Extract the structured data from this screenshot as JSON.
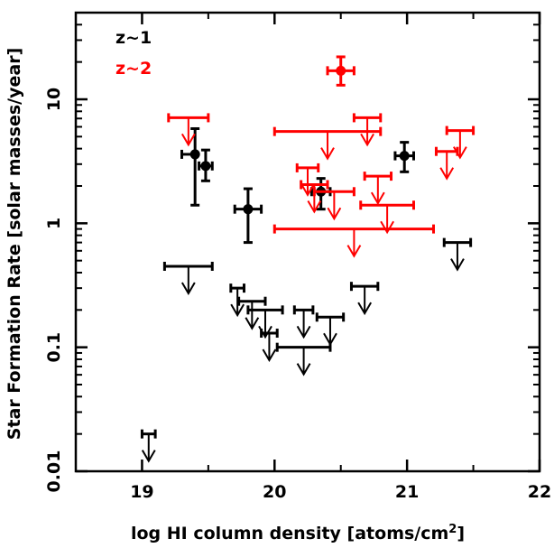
{
  "chart_data": {
    "type": "scatter",
    "xlabel": "log HI column density [atoms/cm",
    "xlabel_sup": "2",
    "xlabel_end": "]",
    "ylabel": "Star Formation Rate [solar masses/year]",
    "x_ticks": [
      "19",
      "20",
      "21",
      "22"
    ],
    "y_ticks": [
      "0.01",
      "0.1",
      "1",
      "10"
    ],
    "xlim": [
      18.5,
      22
    ],
    "ylim": [
      0.01,
      50
    ],
    "yscale": "log",
    "grid": false,
    "legend_position": "top-left",
    "colors": {
      "z1": "#000000",
      "z2": "#ff0000"
    },
    "series": [
      {
        "name": "z~1",
        "color": "#000000",
        "points": [
          {
            "x": 19.4,
            "y": 3.6,
            "xerr": [
              0.1,
              0.0
            ],
            "yerr": [
              1.4,
              5.8
            ]
          },
          {
            "x": 19.48,
            "y": 2.9,
            "xerr": [
              0.05,
              0.05
            ],
            "yerr": [
              2.2,
              3.9
            ]
          },
          {
            "x": 19.8,
            "y": 1.3,
            "xerr": [
              0.1,
              0.1
            ],
            "yerr": [
              0.7,
              1.9
            ]
          },
          {
            "x": 20.35,
            "y": 1.8,
            "xerr": [
              0.07,
              0.07
            ],
            "yerr": [
              1.3,
              2.3
            ]
          },
          {
            "x": 20.98,
            "y": 3.5,
            "xerr": [
              0.07,
              0.07
            ],
            "yerr": [
              2.6,
              4.5
            ]
          }
        ],
        "upper_limits": [
          {
            "x": 19.05,
            "y": 0.02,
            "xerr": [
              0.05,
              0.05
            ]
          },
          {
            "x": 19.35,
            "y": 0.45,
            "xerr": [
              0.18,
              0.18
            ]
          },
          {
            "x": 19.72,
            "y": 0.3,
            "xerr": [
              0.05,
              0.05
            ]
          },
          {
            "x": 19.83,
            "y": 0.235,
            "xerr": [
              0.1,
              0.1
            ]
          },
          {
            "x": 19.93,
            "y": 0.2,
            "xerr": [
              0.13,
              0.13
            ]
          },
          {
            "x": 19.96,
            "y": 0.13,
            "xerr": [
              0.06,
              0.06
            ]
          },
          {
            "x": 20.22,
            "y": 0.2,
            "xerr": [
              0.07,
              0.07
            ]
          },
          {
            "x": 20.22,
            "y": 0.1,
            "xerr": [
              0.2,
              0.2
            ]
          },
          {
            "x": 20.42,
            "y": 0.175,
            "xerr": [
              0.1,
              0.1
            ]
          },
          {
            "x": 20.68,
            "y": 0.31,
            "xerr": [
              0.1,
              0.1
            ]
          },
          {
            "x": 21.38,
            "y": 0.7,
            "xerr": [
              0.1,
              0.1
            ]
          }
        ]
      },
      {
        "name": "z~2",
        "color": "#ff0000",
        "points": [
          {
            "x": 20.5,
            "y": 17,
            "xerr": [
              0.1,
              0.1
            ],
            "yerr": [
              13,
              22
            ]
          }
        ],
        "upper_limits": [
          {
            "x": 19.35,
            "y": 7.1,
            "xerr": [
              0.15,
              0.15
            ]
          },
          {
            "x": 20.4,
            "y": 5.5,
            "xerr": [
              0.4,
              0.4
            ]
          },
          {
            "x": 20.7,
            "y": 7.1,
            "xerr": [
              0.1,
              0.1
            ]
          },
          {
            "x": 21.3,
            "y": 3.8,
            "xerr": [
              0.08,
              0.08
            ]
          },
          {
            "x": 21.4,
            "y": 5.6,
            "xerr": [
              0.1,
              0.1
            ]
          },
          {
            "x": 20.25,
            "y": 2.8,
            "xerr": [
              0.08,
              0.08
            ]
          },
          {
            "x": 20.3,
            "y": 2.05,
            "xerr": [
              0.1,
              0.1
            ]
          },
          {
            "x": 20.45,
            "y": 1.8,
            "xerr": [
              0.15,
              0.15
            ]
          },
          {
            "x": 20.78,
            "y": 2.4,
            "xerr": [
              0.1,
              0.1
            ]
          },
          {
            "x": 20.85,
            "y": 1.4,
            "xerr": [
              0.2,
              0.2
            ]
          },
          {
            "x": 20.6,
            "y": 0.9,
            "xerr": [
              0.6,
              0.6
            ]
          }
        ]
      }
    ]
  }
}
